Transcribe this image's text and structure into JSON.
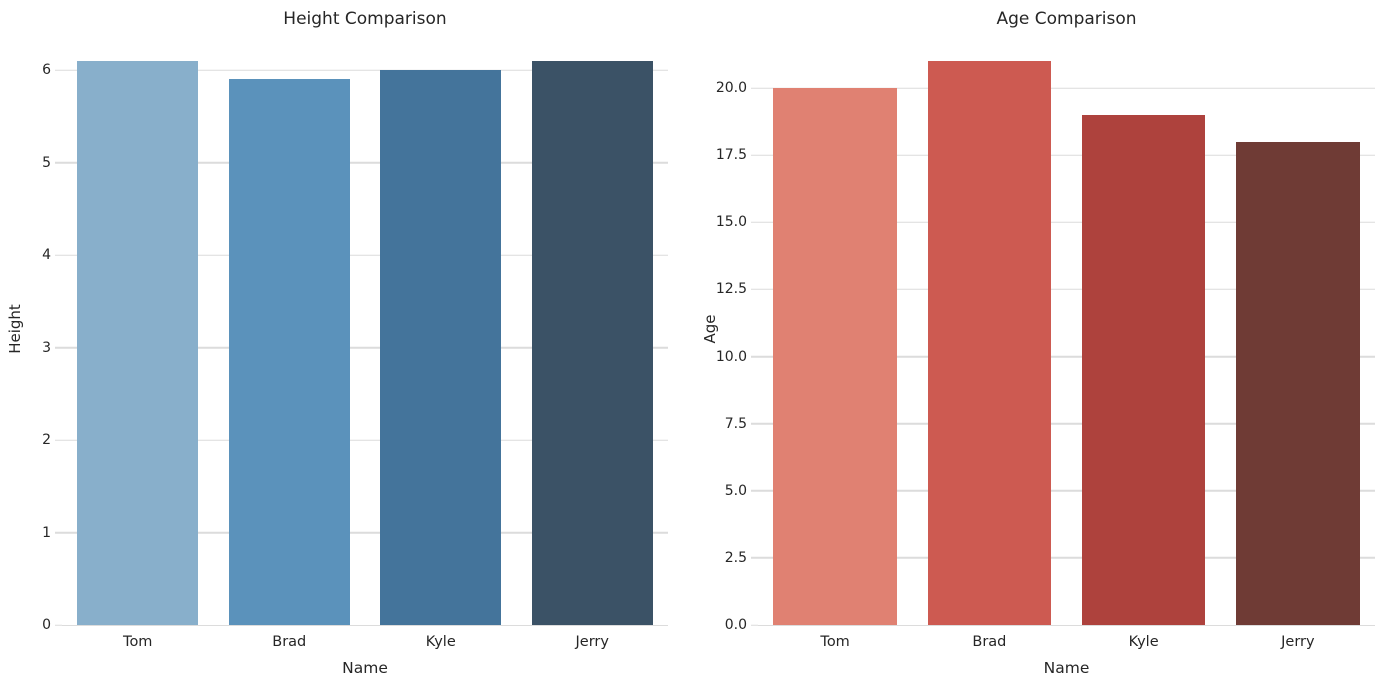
{
  "figure": {
    "background": "#ffffff",
    "text_color": "#262626",
    "grid_color": "#dcdcdc"
  },
  "chart_data": [
    {
      "type": "bar",
      "title": "Height Comparison",
      "xlabel": "Name",
      "ylabel": "Height",
      "categories": [
        "Tom",
        "Brad",
        "Kyle",
        "Jerry"
      ],
      "values": [
        6.1,
        5.9,
        6.0,
        6.1
      ],
      "bar_colors": [
        "#88AFCB",
        "#5B92BB",
        "#44749B",
        "#3B5266"
      ],
      "ylim": [
        0,
        6.4
      ],
      "ytick_values": [
        0,
        1,
        2,
        3,
        4,
        5,
        6
      ],
      "ytick_labels": [
        "0",
        "1",
        "2",
        "3",
        "4",
        "5",
        "6"
      ],
      "grid": true,
      "legend_position": "none"
    },
    {
      "type": "bar",
      "title": "Age Comparison",
      "xlabel": "Name",
      "ylabel": "Age",
      "categories": [
        "Tom",
        "Brad",
        "Kyle",
        "Jerry"
      ],
      "values": [
        20,
        21,
        19,
        18
      ],
      "bar_colors": [
        "#E08172",
        "#CD5A51",
        "#AE423D",
        "#6F3B35"
      ],
      "ylim": [
        0,
        22.05
      ],
      "ytick_values": [
        0,
        2.5,
        5,
        7.5,
        10,
        12.5,
        15,
        17.5,
        20
      ],
      "ytick_labels": [
        "0.0",
        "2.5",
        "5.0",
        "7.5",
        "10.0",
        "12.5",
        "15.0",
        "17.5",
        "20.0"
      ],
      "grid": true,
      "legend_position": "none"
    }
  ]
}
